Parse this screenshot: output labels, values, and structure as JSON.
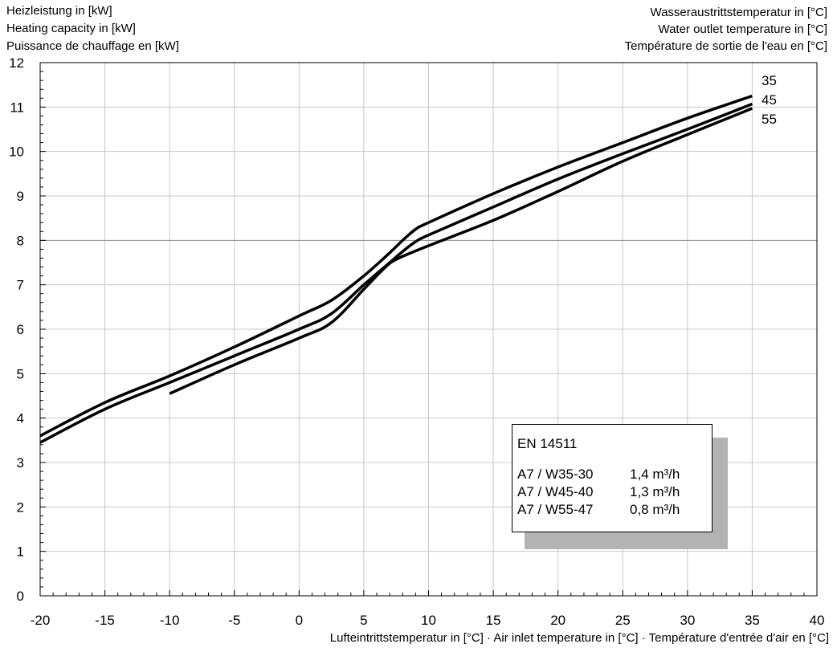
{
  "left_header": {
    "lines": [
      "Heizleistung in [kW]",
      "Heating capacity in [kW]",
      "Puissance de chauffage en [kW]"
    ]
  },
  "right_header": {
    "lines": [
      "Wasseraustrittstemperatur in [°C]",
      "Water outlet temperature in [°C]",
      "Température de sortie de l'eau en [°C]"
    ]
  },
  "legend": {
    "title": "EN 14511",
    "rows": [
      {
        "label": "A7 / W35-30",
        "value": "1,4 m³/h"
      },
      {
        "label": "A7 / W45-40",
        "value": "1,3 m³/h"
      },
      {
        "label": "A7 / W55-47",
        "value": "0,8 m³/h"
      }
    ]
  },
  "chart_data": {
    "type": "line",
    "title": "",
    "xlabel": "Lufteintrittstemperatur in [°C] · Air inlet temperature in [°C] · Température d'entrée d'air en [°C]",
    "ylabel": "Heizleistung in [kW]",
    "xlim": [
      -20,
      40
    ],
    "ylim": [
      0,
      12
    ],
    "xticks": [
      -20,
      -15,
      -10,
      -5,
      0,
      5,
      10,
      15,
      20,
      25,
      30,
      35,
      40
    ],
    "yticks": [
      0,
      1,
      2,
      3,
      4,
      5,
      6,
      7,
      8,
      9,
      10,
      11,
      12
    ],
    "grid": true,
    "series": [
      {
        "name": "35",
        "color": "#000000",
        "points": [
          [
            -20,
            3.6
          ],
          [
            -15,
            4.35
          ],
          [
            -10,
            4.95
          ],
          [
            -5,
            5.6
          ],
          [
            0,
            6.3
          ],
          [
            2.5,
            6.65
          ],
          [
            5,
            7.2
          ],
          [
            7,
            7.72
          ],
          [
            8,
            8.0
          ],
          [
            9,
            8.25
          ],
          [
            10,
            8.4
          ],
          [
            15,
            9.05
          ],
          [
            20,
            9.65
          ],
          [
            25,
            10.2
          ],
          [
            30,
            10.75
          ],
          [
            35,
            11.25
          ]
        ]
      },
      {
        "name": "45",
        "color": "#000000",
        "points": [
          [
            -20,
            3.45
          ],
          [
            -15,
            4.2
          ],
          [
            -10,
            4.8
          ],
          [
            -5,
            5.4
          ],
          [
            0,
            6.0
          ],
          [
            2.5,
            6.35
          ],
          [
            5,
            7.0
          ],
          [
            7,
            7.5
          ],
          [
            8,
            7.75
          ],
          [
            9,
            7.97
          ],
          [
            10,
            8.12
          ],
          [
            15,
            8.75
          ],
          [
            20,
            9.38
          ],
          [
            25,
            9.95
          ],
          [
            30,
            10.5
          ],
          [
            35,
            11.07
          ]
        ]
      },
      {
        "name": "55",
        "color": "#000000",
        "points": [
          [
            -10,
            4.55
          ],
          [
            -5,
            5.2
          ],
          [
            0,
            5.8
          ],
          [
            2.5,
            6.15
          ],
          [
            5,
            6.9
          ],
          [
            6.5,
            7.35
          ],
          [
            7.5,
            7.57
          ],
          [
            10,
            7.88
          ],
          [
            15,
            8.45
          ],
          [
            20,
            9.1
          ],
          [
            25,
            9.78
          ],
          [
            30,
            10.38
          ],
          [
            35,
            10.97
          ]
        ]
      }
    ]
  }
}
